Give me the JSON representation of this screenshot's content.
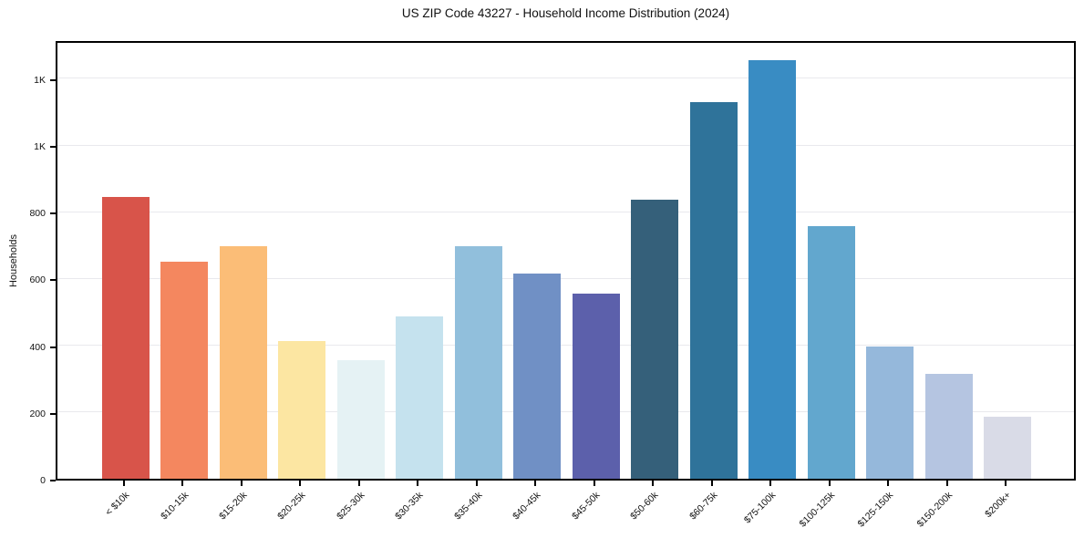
{
  "chart": {
    "title": "US ZIP Code 43227 - Household Income Distribution (2024)",
    "ylabel": "Households"
  },
  "chart_data": {
    "type": "bar",
    "title": "US ZIP Code 43227 - Household Income Distribution (2024)",
    "xlabel": "",
    "ylabel": "Households",
    "categories": [
      "< $10k",
      "$10-15k",
      "$15-20k",
      "$20-25k",
      "$25-30k",
      "$30-35k",
      "$35-40k",
      "$40-45k",
      "$45-50k",
      "$50-60k",
      "$60-75k",
      "$75-100k",
      "$100-125k",
      "$125-150k",
      "$150-200k",
      "$200k+"
    ],
    "values": [
      845,
      650,
      698,
      412,
      356,
      487,
      698,
      615,
      556,
      836,
      1128,
      1253,
      757,
      397,
      315,
      185
    ],
    "bar_colors": [
      "#D8544A",
      "#F4875F",
      "#FBBD77",
      "#FCE6A2",
      "#E5F2F4",
      "#C5E2EE",
      "#91BFDC",
      "#7090C5",
      "#5C60AB",
      "#35607A",
      "#2F739A",
      "#398CC3",
      "#62A7CE",
      "#95B8DB",
      "#B5C5E1",
      "#D9DBE7"
    ],
    "ylim": [
      0,
      1317
    ],
    "yticks": [
      {
        "value": 0,
        "label": "0"
      },
      {
        "value": 200,
        "label": "200"
      },
      {
        "value": 400,
        "label": "400"
      },
      {
        "value": 600,
        "label": "600"
      },
      {
        "value": 800,
        "label": "800"
      },
      {
        "value": 1000,
        "label": "1K"
      },
      {
        "value": 1200,
        "label": "1K"
      }
    ],
    "grid": "horizontal",
    "gridline_color": "#e9e9ed",
    "spine_color": "#000000",
    "background": "#ffffff",
    "legend_position": "none"
  }
}
